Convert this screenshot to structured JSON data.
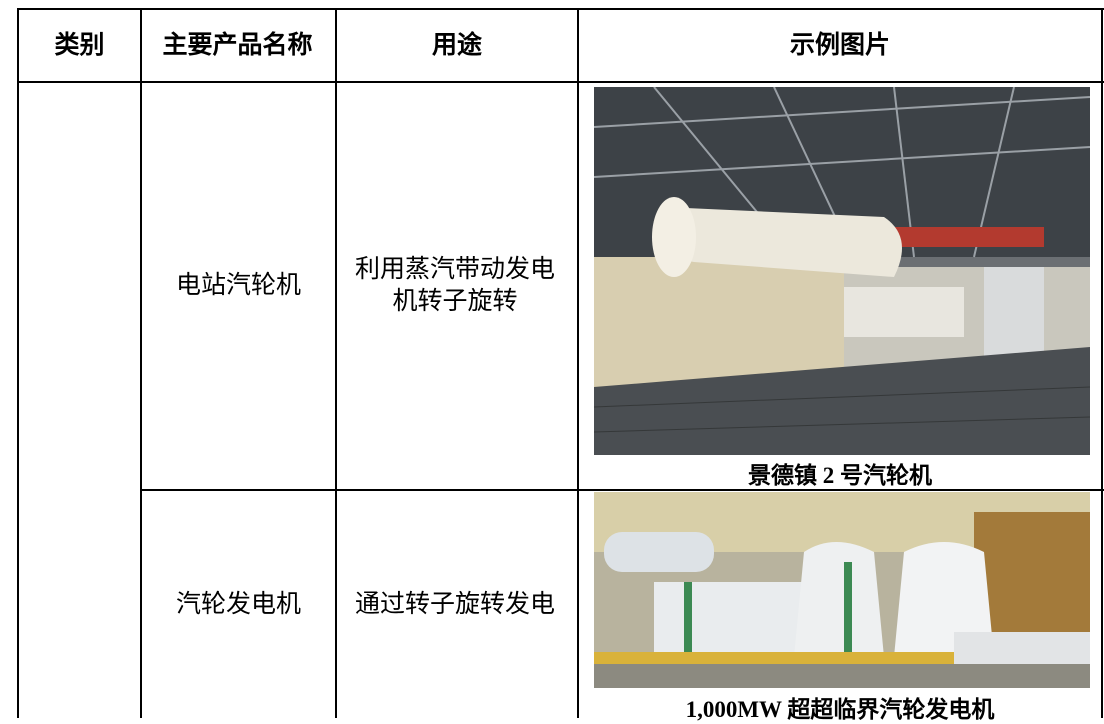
{
  "table": {
    "header": [
      "类别",
      "主要产品名称",
      "用途",
      "示例图片"
    ],
    "rows": [
      {
        "product": "电站汽轮机",
        "usage": "利用蒸汽带动发电机转子旋转",
        "caption": "景德镇 2 号汽轮机"
      },
      {
        "product": "汽轮发电机",
        "usage": "通过转子旋转发电",
        "caption": "1,000MW 超超临界汽轮发电机"
      }
    ]
  }
}
